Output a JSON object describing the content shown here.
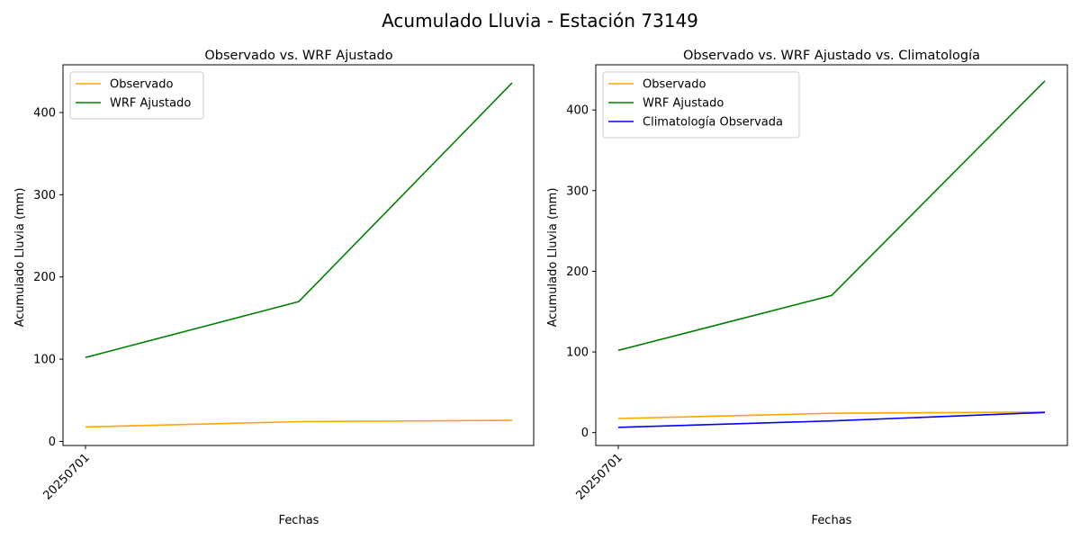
{
  "figure": {
    "title": "Acumulado Lluvia - Estación 73149"
  },
  "chart_data": [
    {
      "type": "line",
      "title": "Observado vs. WRF Ajustado",
      "xlabel": "Fechas",
      "ylabel": "Acumulado Lluvia (mm)",
      "x_tick_labels": [
        "20250701"
      ],
      "y_ticks": [
        0,
        100,
        200,
        300,
        400
      ],
      "ylim": [
        -5,
        458
      ],
      "legend_position": "upper-left",
      "grid": false,
      "series": [
        {
          "name": "Observado",
          "color": "#ffa500",
          "values": [
            17.5,
            24,
            25.5
          ]
        },
        {
          "name": "WRF Ajustado",
          "color": "#008000",
          "values": [
            102,
            170,
            436
          ]
        }
      ]
    },
    {
      "type": "line",
      "title": "Observado vs. WRF Ajustado vs. Climatología",
      "xlabel": "Fechas",
      "ylabel": "Acumulado Lluvia (mm)",
      "x_tick_labels": [
        "20250701"
      ],
      "y_ticks": [
        0,
        100,
        200,
        300,
        400
      ],
      "ylim": [
        -16,
        456
      ],
      "legend_position": "upper-left",
      "grid": false,
      "series": [
        {
          "name": "Observado",
          "color": "#ffa500",
          "values": [
            17.5,
            24,
            25.5
          ]
        },
        {
          "name": "WRF Ajustado",
          "color": "#008000",
          "values": [
            102,
            170,
            436
          ]
        },
        {
          "name": "Climatología Observada",
          "color": "#0000ff",
          "values": [
            6.5,
            14.5,
            25
          ]
        }
      ]
    }
  ]
}
